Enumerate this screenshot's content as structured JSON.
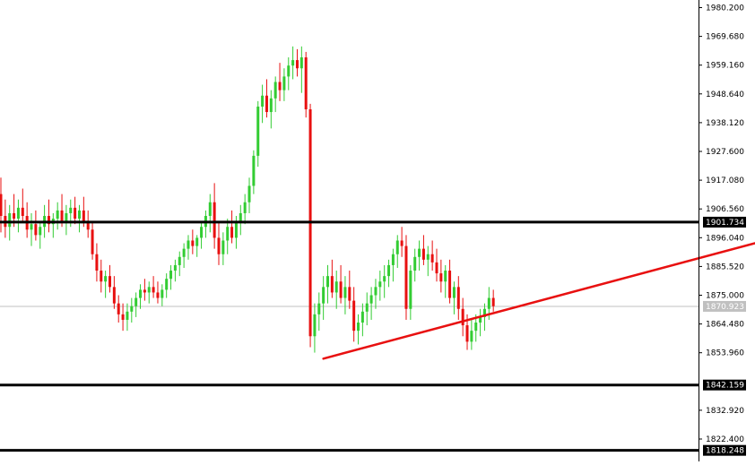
{
  "chart_data": {
    "type": "candlestick",
    "title": "",
    "xlabel": "",
    "ylabel": "",
    "ylim": [
      1814.0,
      1985.0
    ],
    "y_ticks": [
      "1980.200",
      "1969.680",
      "1959.160",
      "1948.640",
      "1938.120",
      "1927.600",
      "1917.080",
      "1906.560",
      "1896.040",
      "1885.520",
      "1875.000",
      "1864.480",
      "1853.960",
      "1832.920",
      "1822.400"
    ],
    "horizontal_levels": [
      {
        "label": "1901.734",
        "value": 1901.734,
        "color": "#000000"
      },
      {
        "label": "1842.159",
        "value": 1842.159,
        "color": "#000000"
      },
      {
        "label": "1818.248",
        "value": 1818.248,
        "color": "#000000"
      }
    ],
    "current_price": {
      "label": "1870.923",
      "value": 1870.923,
      "color": "#c0c0c0"
    },
    "trendline": {
      "from": [
        74,
        1851.8
      ],
      "to": [
        180,
        1897.0
      ],
      "color": "#e81010"
    },
    "bull_color": "#33cc33",
    "bear_color": "#e81010",
    "candles": [
      [
        1912,
        1918,
        1898,
        1904
      ],
      [
        1904,
        1910,
        1896,
        1900
      ],
      [
        1900,
        1908,
        1895,
        1905
      ],
      [
        1905,
        1912,
        1900,
        1903
      ],
      [
        1903,
        1910,
        1898,
        1907
      ],
      [
        1907,
        1914,
        1902,
        1904
      ],
      [
        1904,
        1909,
        1896,
        1899
      ],
      [
        1899,
        1905,
        1893,
        1901
      ],
      [
        1901,
        1906,
        1895,
        1897
      ],
      [
        1897,
        1902,
        1892,
        1900
      ],
      [
        1900,
        1908,
        1896,
        1904
      ],
      [
        1904,
        1910,
        1898,
        1901
      ],
      [
        1901,
        1905,
        1896,
        1903
      ],
      [
        1903,
        1909,
        1899,
        1906
      ],
      [
        1906,
        1912,
        1900,
        1902
      ],
      [
        1902,
        1908,
        1897,
        1905
      ],
      [
        1905,
        1910,
        1900,
        1907
      ],
      [
        1907,
        1911,
        1901,
        1903
      ],
      [
        1903,
        1908,
        1898,
        1906
      ],
      [
        1906,
        1911,
        1900,
        1902
      ],
      [
        1902,
        1906,
        1896,
        1899
      ],
      [
        1899,
        1902,
        1888,
        1890
      ],
      [
        1890,
        1894,
        1880,
        1884
      ],
      [
        1884,
        1888,
        1876,
        1880
      ],
      [
        1880,
        1884,
        1874,
        1882
      ],
      [
        1882,
        1886,
        1876,
        1878
      ],
      [
        1878,
        1882,
        1870,
        1872
      ],
      [
        1872,
        1875,
        1865,
        1868
      ],
      [
        1868,
        1872,
        1862,
        1866
      ],
      [
        1866,
        1872,
        1862,
        1869
      ],
      [
        1869,
        1874,
        1865,
        1871
      ],
      [
        1871,
        1876,
        1867,
        1874
      ],
      [
        1874,
        1879,
        1870,
        1877
      ],
      [
        1877,
        1881,
        1873,
        1876
      ],
      [
        1876,
        1880,
        1872,
        1878
      ],
      [
        1878,
        1882,
        1874,
        1876
      ],
      [
        1876,
        1880,
        1872,
        1874
      ],
      [
        1874,
        1879,
        1871,
        1877
      ],
      [
        1877,
        1883,
        1874,
        1881
      ],
      [
        1881,
        1886,
        1877,
        1884
      ],
      [
        1884,
        1888,
        1880,
        1886
      ],
      [
        1886,
        1891,
        1882,
        1889
      ],
      [
        1889,
        1894,
        1885,
        1892
      ],
      [
        1892,
        1897,
        1888,
        1895
      ],
      [
        1895,
        1899,
        1890,
        1893
      ],
      [
        1893,
        1897,
        1889,
        1896
      ],
      [
        1896,
        1902,
        1892,
        1900
      ],
      [
        1900,
        1906,
        1896,
        1904
      ],
      [
        1904,
        1912,
        1898,
        1909
      ],
      [
        1909,
        1916,
        1892,
        1896
      ],
      [
        1896,
        1902,
        1886,
        1890
      ],
      [
        1890,
        1898,
        1886,
        1895
      ],
      [
        1895,
        1903,
        1890,
        1900
      ],
      [
        1900,
        1906,
        1894,
        1896
      ],
      [
        1896,
        1904,
        1892,
        1902
      ],
      [
        1902,
        1908,
        1897,
        1905
      ],
      [
        1905,
        1912,
        1901,
        1909
      ],
      [
        1909,
        1918,
        1905,
        1915
      ],
      [
        1915,
        1928,
        1912,
        1926
      ],
      [
        1926,
        1946,
        1922,
        1944
      ],
      [
        1944,
        1952,
        1938,
        1948
      ],
      [
        1948,
        1954,
        1940,
        1942
      ],
      [
        1942,
        1950,
        1936,
        1947
      ],
      [
        1947,
        1955,
        1942,
        1953
      ],
      [
        1953,
        1960,
        1946,
        1950
      ],
      [
        1950,
        1958,
        1946,
        1955
      ],
      [
        1955,
        1962,
        1950,
        1959
      ],
      [
        1959,
        1966,
        1954,
        1961
      ],
      [
        1961,
        1965,
        1955,
        1958
      ],
      [
        1958,
        1966,
        1949,
        1962
      ],
      [
        1962,
        1964,
        1940,
        1943
      ],
      [
        1943,
        1945,
        1856,
        1860
      ],
      [
        1860,
        1872,
        1854,
        1868
      ],
      [
        1868,
        1876,
        1862,
        1872
      ],
      [
        1872,
        1882,
        1866,
        1878
      ],
      [
        1878,
        1886,
        1872,
        1882
      ],
      [
        1882,
        1888,
        1874,
        1876
      ],
      [
        1876,
        1884,
        1870,
        1880
      ],
      [
        1880,
        1886,
        1872,
        1874
      ],
      [
        1874,
        1882,
        1868,
        1878
      ],
      [
        1878,
        1884,
        1870,
        1873
      ],
      [
        1873,
        1878,
        1858,
        1862
      ],
      [
        1862,
        1868,
        1857,
        1865
      ],
      [
        1865,
        1872,
        1860,
        1869
      ],
      [
        1869,
        1876,
        1864,
        1872
      ],
      [
        1872,
        1878,
        1866,
        1875
      ],
      [
        1875,
        1881,
        1870,
        1878
      ],
      [
        1878,
        1884,
        1873,
        1880
      ],
      [
        1880,
        1886,
        1874,
        1882
      ],
      [
        1882,
        1888,
        1878,
        1886
      ],
      [
        1886,
        1892,
        1880,
        1890
      ],
      [
        1890,
        1897,
        1885,
        1895
      ],
      [
        1895,
        1900,
        1889,
        1893
      ],
      [
        1893,
        1897,
        1866,
        1870
      ],
      [
        1870,
        1886,
        1866,
        1884
      ],
      [
        1884,
        1892,
        1880,
        1889
      ],
      [
        1889,
        1895,
        1884,
        1892
      ],
      [
        1892,
        1897,
        1886,
        1888
      ],
      [
        1888,
        1893,
        1882,
        1890
      ],
      [
        1890,
        1895,
        1884,
        1887
      ],
      [
        1887,
        1892,
        1880,
        1883
      ],
      [
        1883,
        1888,
        1876,
        1880
      ],
      [
        1880,
        1886,
        1874,
        1884
      ],
      [
        1884,
        1888,
        1872,
        1874
      ],
      [
        1874,
        1880,
        1868,
        1878
      ],
      [
        1878,
        1882,
        1866,
        1870
      ],
      [
        1870,
        1874,
        1860,
        1864
      ],
      [
        1864,
        1868,
        1855,
        1858
      ],
      [
        1858,
        1866,
        1855,
        1862
      ],
      [
        1862,
        1868,
        1858,
        1865
      ],
      [
        1865,
        1870,
        1860,
        1867
      ],
      [
        1867,
        1872,
        1862,
        1870
      ],
      [
        1870,
        1878,
        1866,
        1874
      ],
      [
        1874,
        1877,
        1869,
        1871
      ]
    ]
  }
}
